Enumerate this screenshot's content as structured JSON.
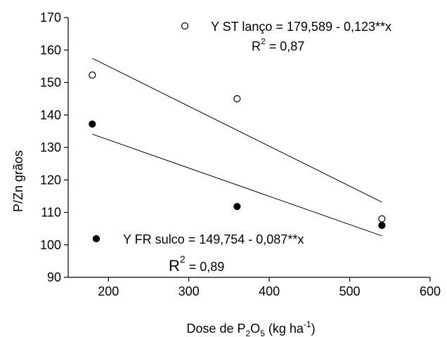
{
  "chart_data": {
    "type": "scatter",
    "xlabel": {
      "main": "Dose de P",
      "sub1": "2",
      "mid": "O",
      "sub2": "5",
      "unit_open": " (kg ha",
      "sup": "-1",
      "unit_close": ")"
    },
    "ylabel": "P/Zn grãos",
    "xlim": [
      150,
      600
    ],
    "ylim": [
      90,
      170
    ],
    "xticks": [
      200,
      300,
      400,
      500,
      600
    ],
    "yticks": [
      90,
      100,
      110,
      120,
      130,
      140,
      150,
      160,
      170
    ],
    "grid": false,
    "series": [
      {
        "name": "Y ST lanço",
        "marker": "open-circle",
        "x": [
          180,
          360,
          540
        ],
        "y": [
          152.3,
          145.0,
          108.0
        ],
        "fit": {
          "intercept": 179.589,
          "slope": -0.123
        },
        "equation": "Y ST lanço = 179,589 - 0,123**x",
        "r2_label": "R",
        "r2_sup": "2",
        "r2_value": " = 0,87"
      },
      {
        "name": "Y FR sulco",
        "marker": "filled-circle",
        "x": [
          180,
          360,
          540
        ],
        "y": [
          137.2,
          111.8,
          106.0
        ],
        "fit": {
          "intercept": 149.754,
          "slope": -0.087
        },
        "equation": "Y FR sulco = 149,754 - 0,087**x",
        "r2_label": "R",
        "r2_sup": "2",
        "r2_value": " = 0,89"
      }
    ]
  }
}
